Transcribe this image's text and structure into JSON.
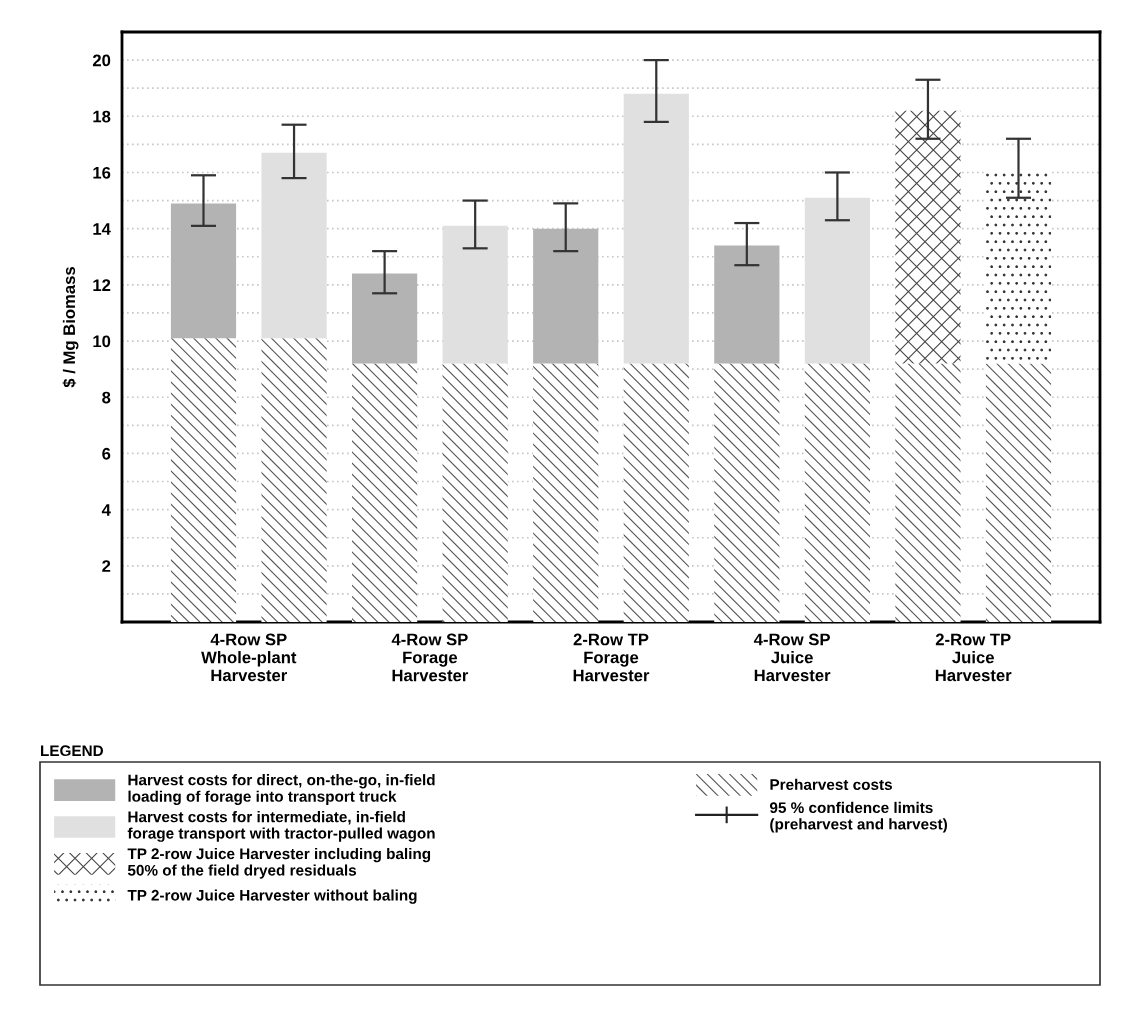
{
  "chart_data": {
    "type": "bar",
    "stacked": true,
    "ylabel": "$ / Mg Biomass",
    "categories": [
      "4-Row SP\nWhole-plant\nHarvester",
      null,
      "4-Row SP\nForage\nHarvester",
      null,
      "2-Row TP\nForage\nHarvester",
      null,
      "4-Row SP\nJuice\nHarvester",
      null,
      "2-Row TP\nJuice\nHarvester",
      null
    ],
    "series": [
      {
        "name": "Preharvest costs",
        "color": "#555555",
        "values": [
          10.1,
          10.1,
          9.2,
          9.2,
          9.2,
          9.2,
          9.2,
          9.2,
          9.2,
          9.2
        ]
      },
      {
        "name": "Harvest costs for direct, on-the-go, in-field\nloading of forage into transport truck",
        "color": "#b3b3b3",
        "values": [
          4.8,
          null,
          3.2,
          null,
          4.8,
          null,
          4.2,
          null,
          null,
          null
        ],
        "errors": [
          [
            14.1,
            15.9
          ],
          null,
          [
            11.7,
            13.2
          ],
          null,
          [
            13.2,
            14.9
          ],
          null,
          [
            12.7,
            14.2
          ],
          null,
          null,
          null
        ]
      },
      {
        "name": "Harvest costs for intermediate, in-field\nforage transport with tractor-pulled wagon",
        "color": "#e0e0e0",
        "values": [
          null,
          6.6,
          null,
          4.9,
          null,
          9.6,
          null,
          5.9,
          null,
          null
        ],
        "errors": [
          null,
          [
            15.8,
            17.7
          ],
          null,
          [
            13.3,
            15.0
          ],
          null,
          [
            17.8,
            20.0
          ],
          null,
          [
            14.3,
            16.0
          ],
          null,
          null
        ]
      },
      {
        "name": "TP 2-row Juice Harvester including baling\n50% of the field dryed residuals",
        "color": "#444444",
        "values": [
          null,
          null,
          null,
          null,
          null,
          null,
          null,
          null,
          9.0,
          null
        ],
        "errors": [
          null,
          null,
          null,
          null,
          null,
          null,
          null,
          null,
          [
            17.2,
            19.3
          ],
          null
        ]
      },
      {
        "name": "TP 2-row Juice Harvester without baling",
        "color": "#333333",
        "values": [
          null,
          null,
          null,
          null,
          null,
          null,
          null,
          null,
          null,
          6.9
        ],
        "errors": [
          null,
          null,
          null,
          null,
          null,
          null,
          null,
          null,
          null,
          [
            15.1,
            17.2
          ]
        ]
      }
    ],
    "annotations": [
      "95 % confidence limits",
      "(preharvest and harvest)"
    ],
    "legend_title": "LEGEND",
    "legend": "bottom",
    "ylim": [
      0,
      21
    ],
    "yticks": [
      {
        "value": 1,
        "label": null
      },
      2,
      {
        "value": 3,
        "label": null
      },
      4,
      {
        "value": 5,
        "label": null
      },
      6,
      {
        "value": 7,
        "label": null
      },
      8,
      {
        "value": 9,
        "label": null
      },
      10,
      {
        "value": 11,
        "label": null
      },
      12,
      {
        "value": 13,
        "label": null
      },
      14,
      {
        "value": 15,
        "label": null
      },
      16,
      {
        "value": 17,
        "label": null
      },
      18,
      {
        "value": 19,
        "label": null
      },
      20
    ],
    "grid": "y"
  }
}
